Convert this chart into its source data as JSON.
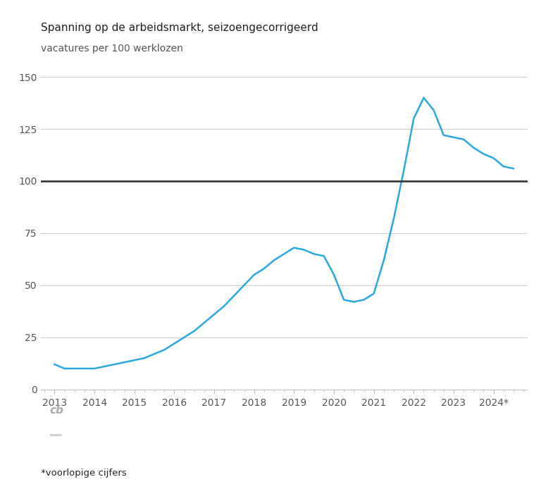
{
  "title": "Spanning op de arbeidsmarkt, seizoengecorrigeerd",
  "ylabel": "vacatures per 100 werklozen",
  "line_color": "#29a8e0",
  "hline_color": "#3d3d3d",
  "hline_value": 100,
  "ylim": [
    0,
    150
  ],
  "yticks": [
    0,
    25,
    50,
    75,
    100,
    125,
    150
  ],
  "xlabel_years": [
    "2013",
    "2014",
    "2015",
    "2016",
    "2017",
    "2018",
    "2019",
    "2020",
    "2021",
    "2022",
    "2023",
    "2024*"
  ],
  "footnote": "*voorlopige cijfers",
  "x": [
    2013.0,
    2013.25,
    2013.5,
    2013.75,
    2014.0,
    2014.25,
    2014.5,
    2014.75,
    2015.0,
    2015.25,
    2015.5,
    2015.75,
    2016.0,
    2016.25,
    2016.5,
    2016.75,
    2017.0,
    2017.25,
    2017.5,
    2017.75,
    2018.0,
    2018.25,
    2018.5,
    2018.75,
    2019.0,
    2019.25,
    2019.5,
    2019.75,
    2020.0,
    2020.25,
    2020.5,
    2020.75,
    2021.0,
    2021.25,
    2021.5,
    2021.75,
    2022.0,
    2022.25,
    2022.5,
    2022.75,
    2023.0,
    2023.25,
    2023.5,
    2023.75,
    2024.0,
    2024.25,
    2024.5
  ],
  "y": [
    12,
    10,
    10,
    10,
    10,
    11,
    12,
    13,
    14,
    15,
    17,
    19,
    22,
    25,
    28,
    32,
    36,
    40,
    45,
    50,
    55,
    58,
    62,
    65,
    68,
    67,
    65,
    64,
    55,
    43,
    42,
    43,
    46,
    62,
    82,
    105,
    130,
    140,
    134,
    122,
    121,
    120,
    116,
    113,
    111,
    107,
    106
  ],
  "xlim_left": 2012.65,
  "xlim_right": 2024.85,
  "footer_color": "#e8e8e8",
  "grid_color": "#cccccc",
  "tick_color": "#999999",
  "label_color": "#555555",
  "title_color": "#222222"
}
